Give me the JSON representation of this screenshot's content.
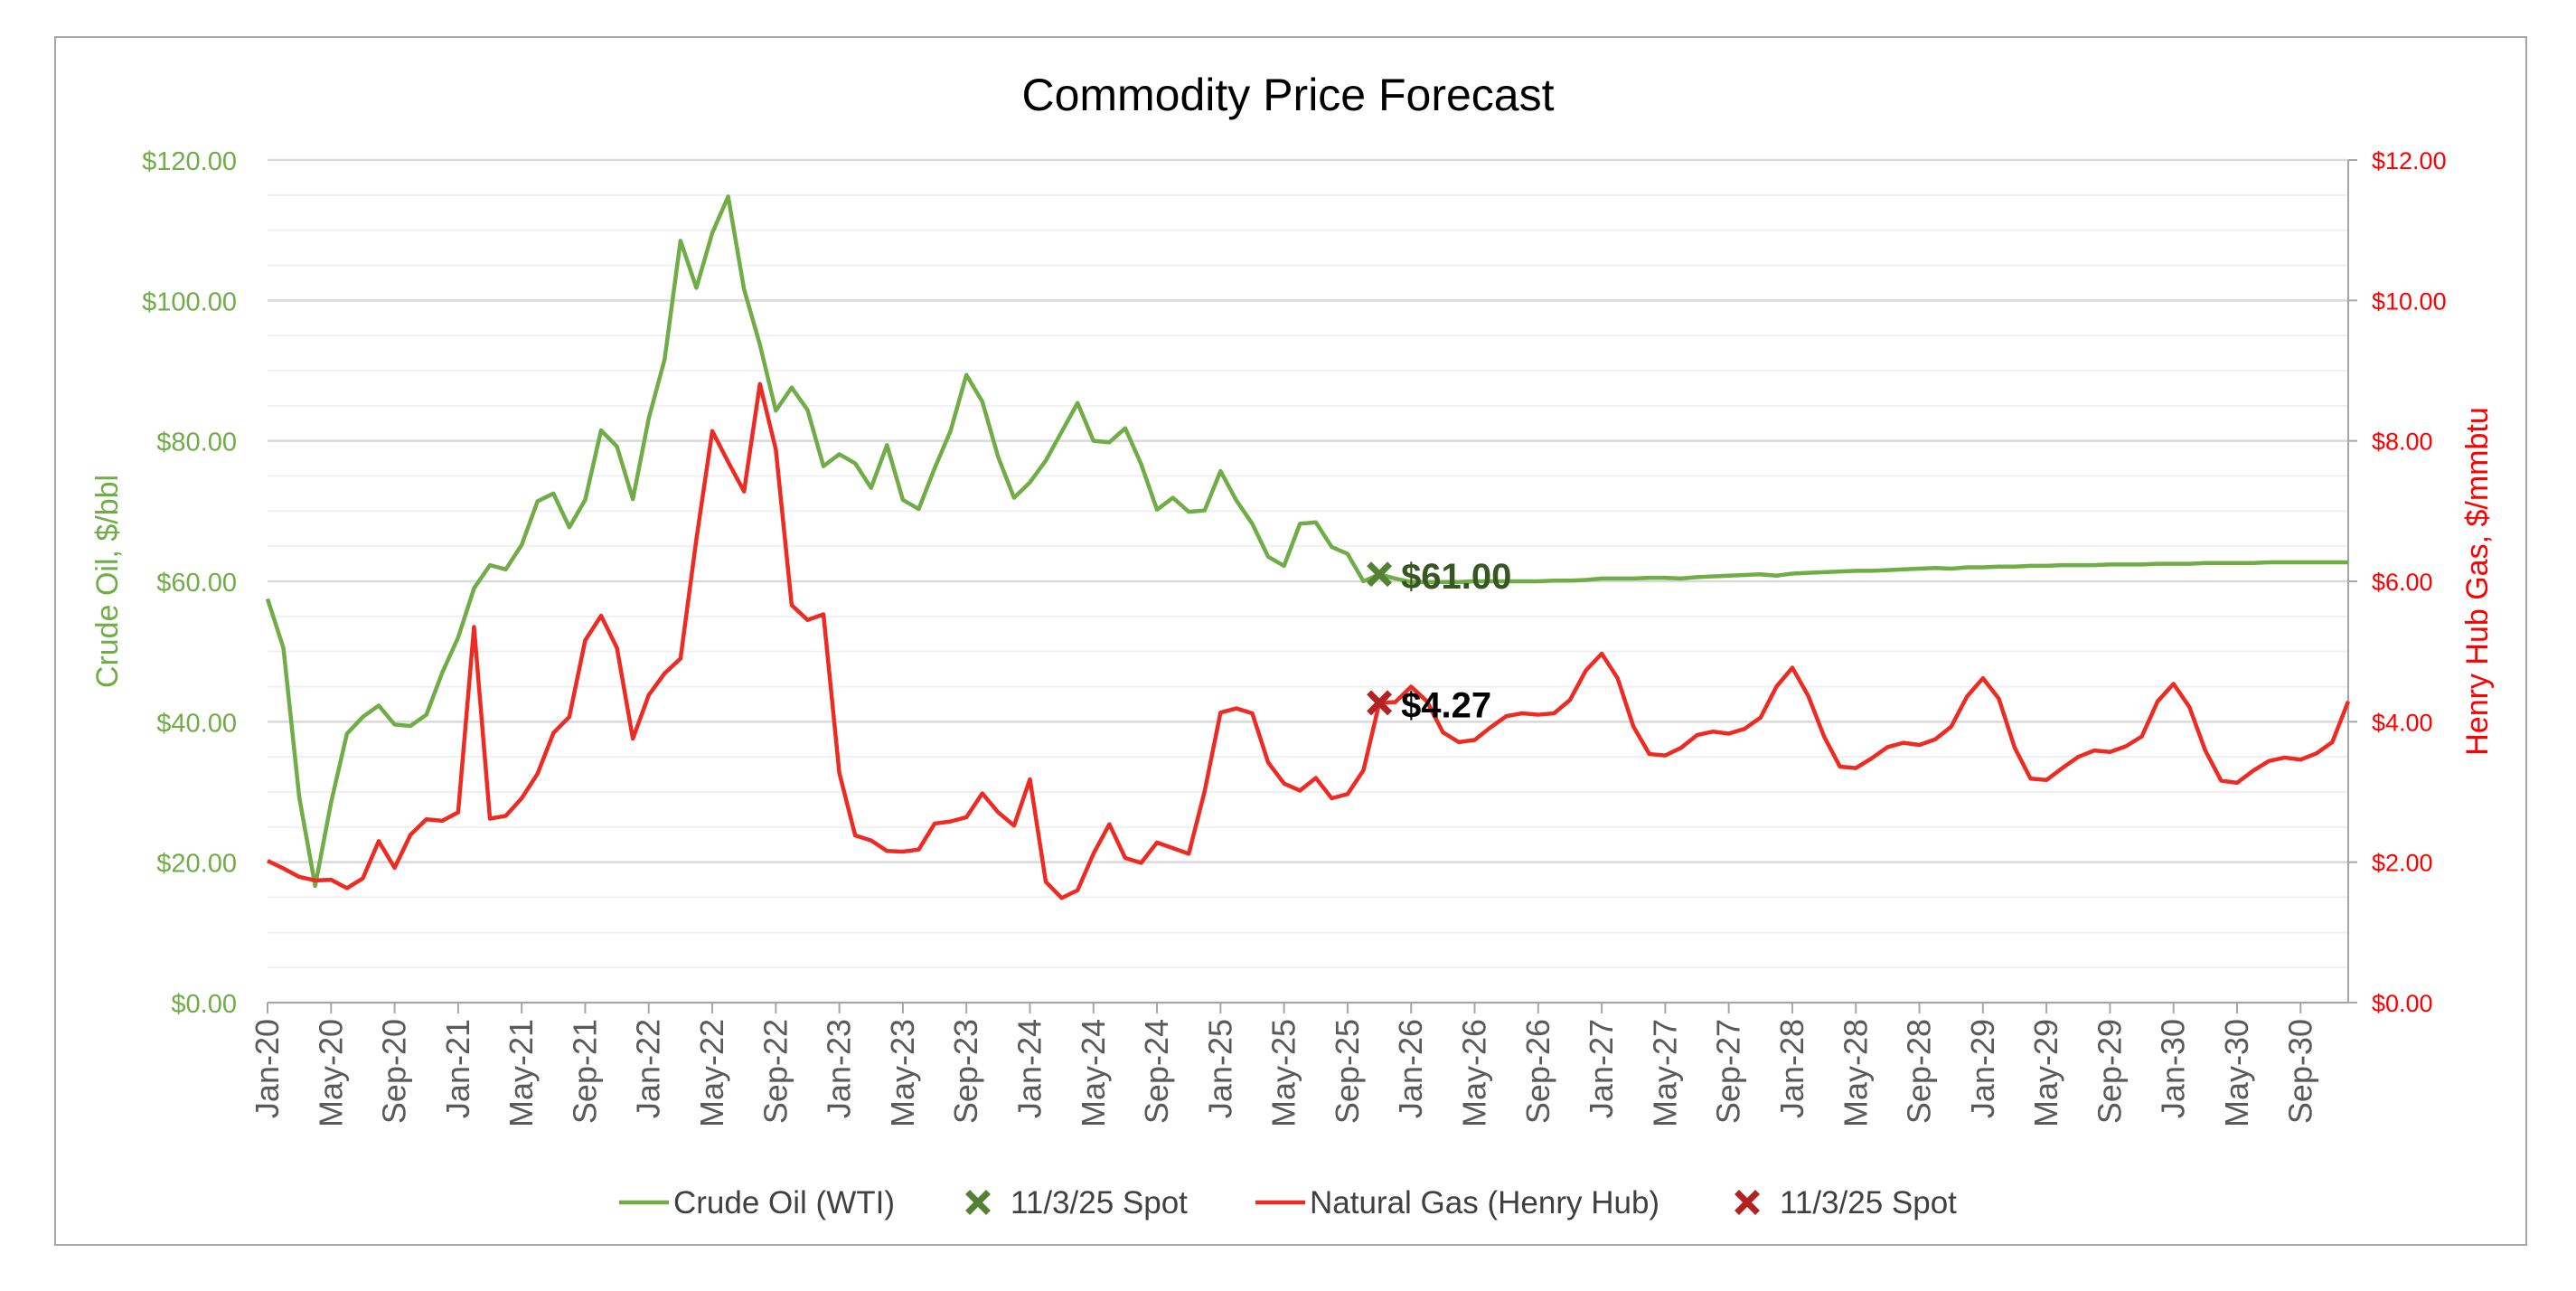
{
  "chart_data": {
    "type": "line",
    "title": "Commodity Price Forecast",
    "y_left": {
      "label": "Crude Oil, $/bbl",
      "range": [
        0,
        120
      ],
      "major_step": 20,
      "minor_step": 5,
      "tick_labels": [
        "$0.00",
        "$20.00",
        "$40.00",
        "$60.00",
        "$80.00",
        "$100.00",
        "$120.00"
      ],
      "color": "#70ad47"
    },
    "y_right": {
      "label": "Henry Hub Gas, $/mmbtu",
      "range": [
        0,
        12
      ],
      "major_step": 2,
      "tick_labels": [
        "$0.00",
        "$2.00",
        "$4.00",
        "$6.00",
        "$8.00",
        "$10.00",
        "$12.00"
      ],
      "color": "#ff0000"
    },
    "x": {
      "start": "Jan-20",
      "end": "Dec-30",
      "label_every_months": 4,
      "tick_labels": [
        "Jan-20",
        "May-20",
        "Sep-20",
        "Jan-21",
        "May-21",
        "Sep-21",
        "Jan-22",
        "May-22",
        "Sep-22",
        "Jan-23",
        "May-23",
        "Sep-23",
        "Jan-24",
        "May-24",
        "Sep-24",
        "Jan-25",
        "May-25",
        "Sep-25",
        "Jan-26",
        "May-26",
        "Sep-26",
        "Jan-27",
        "May-27",
        "Sep-27",
        "Jan-28",
        "May-28",
        "Sep-28",
        "Jan-29",
        "May-29",
        "Sep-29",
        "Jan-30",
        "May-30",
        "Sep-30"
      ]
    },
    "grid": true,
    "legend_position": "bottom",
    "series": [
      {
        "name": "Crude Oil (WTI)",
        "axis": "left",
        "color": "#70ad47",
        "values": [
          57.5,
          50.5,
          29.2,
          16.6,
          28.5,
          38.3,
          40.7,
          42.3,
          39.6,
          39.4,
          41.0,
          47.0,
          52.0,
          59.0,
          62.3,
          61.7,
          65.2,
          71.4,
          72.5,
          67.7,
          71.6,
          81.5,
          79.2,
          71.7,
          83.2,
          91.6,
          108.5,
          101.8,
          109.6,
          114.8,
          101.6,
          93.7,
          84.3,
          87.6,
          84.4,
          76.4,
          78.1,
          76.8,
          73.3,
          79.4,
          71.6,
          70.3,
          76.1,
          81.4,
          89.4,
          85.6,
          77.7,
          71.9,
          74.1,
          77.2,
          81.3,
          85.4,
          80.0,
          79.8,
          81.8,
          76.7,
          70.2,
          71.9,
          69.9,
          70.1,
          75.7,
          71.5,
          68.2,
          63.5,
          62.2,
          68.2,
          68.4,
          64.9,
          63.9,
          60.0,
          61.0,
          60.4,
          59.9,
          59.9,
          59.9,
          59.9,
          60.0,
          60.0,
          60.0,
          60.0,
          60.0,
          60.1,
          60.1,
          60.2,
          60.4,
          60.4,
          60.4,
          60.5,
          60.5,
          60.4,
          60.6,
          60.7,
          60.8,
          60.9,
          61.0,
          60.8,
          61.1,
          61.2,
          61.3,
          61.4,
          61.5,
          61.5,
          61.6,
          61.7,
          61.8,
          61.9,
          61.8,
          62.0,
          62.0,
          62.1,
          62.1,
          62.2,
          62.2,
          62.3,
          62.3,
          62.3,
          62.4,
          62.4,
          62.4,
          62.5,
          62.5,
          62.5,
          62.6,
          62.6,
          62.6,
          62.6,
          62.7,
          62.7,
          62.7,
          62.7,
          62.7,
          62.7
        ]
      },
      {
        "name": "11/3/25 Spot",
        "axis": "left",
        "color": "#548235",
        "marker": "x",
        "points": [
          {
            "x": "Nov-25",
            "y": 61.0
          }
        ],
        "data_label": "$61.00",
        "label_color": "#375623"
      },
      {
        "name": "Natural Gas (Henry Hub)",
        "axis": "right",
        "color": "#ee2b22",
        "values": [
          2.02,
          1.91,
          1.79,
          1.74,
          1.75,
          1.63,
          1.77,
          2.3,
          1.92,
          2.39,
          2.61,
          2.59,
          2.71,
          5.35,
          2.62,
          2.66,
          2.91,
          3.26,
          3.84,
          4.07,
          5.16,
          5.51,
          5.05,
          3.76,
          4.38,
          4.69,
          4.9,
          6.6,
          8.14,
          7.7,
          7.28,
          8.81,
          7.88,
          5.66,
          5.45,
          5.53,
          3.27,
          2.38,
          2.31,
          2.16,
          2.15,
          2.18,
          2.55,
          2.58,
          2.64,
          2.98,
          2.71,
          2.52,
          3.18,
          1.72,
          1.49,
          1.6,
          2.12,
          2.54,
          2.06,
          1.99,
          2.28,
          2.2,
          2.12,
          3.01,
          4.13,
          4.19,
          4.12,
          3.42,
          3.12,
          3.02,
          3.2,
          2.91,
          2.97,
          3.31,
          4.27,
          4.28,
          4.5,
          4.29,
          3.85,
          3.71,
          3.74,
          3.92,
          4.08,
          4.12,
          4.1,
          4.12,
          4.31,
          4.73,
          4.97,
          4.62,
          3.93,
          3.54,
          3.52,
          3.63,
          3.81,
          3.86,
          3.83,
          3.9,
          4.06,
          4.5,
          4.77,
          4.37,
          3.79,
          3.36,
          3.34,
          3.48,
          3.64,
          3.7,
          3.67,
          3.75,
          3.93,
          4.36,
          4.62,
          4.33,
          3.63,
          3.19,
          3.17,
          3.34,
          3.5,
          3.59,
          3.57,
          3.65,
          3.79,
          4.29,
          4.54,
          4.21,
          3.59,
          3.16,
          3.13,
          3.3,
          3.44,
          3.49,
          3.46,
          3.55,
          3.71,
          4.29
        ]
      },
      {
        "name": "11/3/25 Spot",
        "axis": "right",
        "color": "#b22222",
        "marker": "x",
        "points": [
          {
            "x": "Nov-25",
            "y": 4.27
          }
        ],
        "data_label": "$4.27",
        "label_color": "#000000"
      }
    ]
  }
}
